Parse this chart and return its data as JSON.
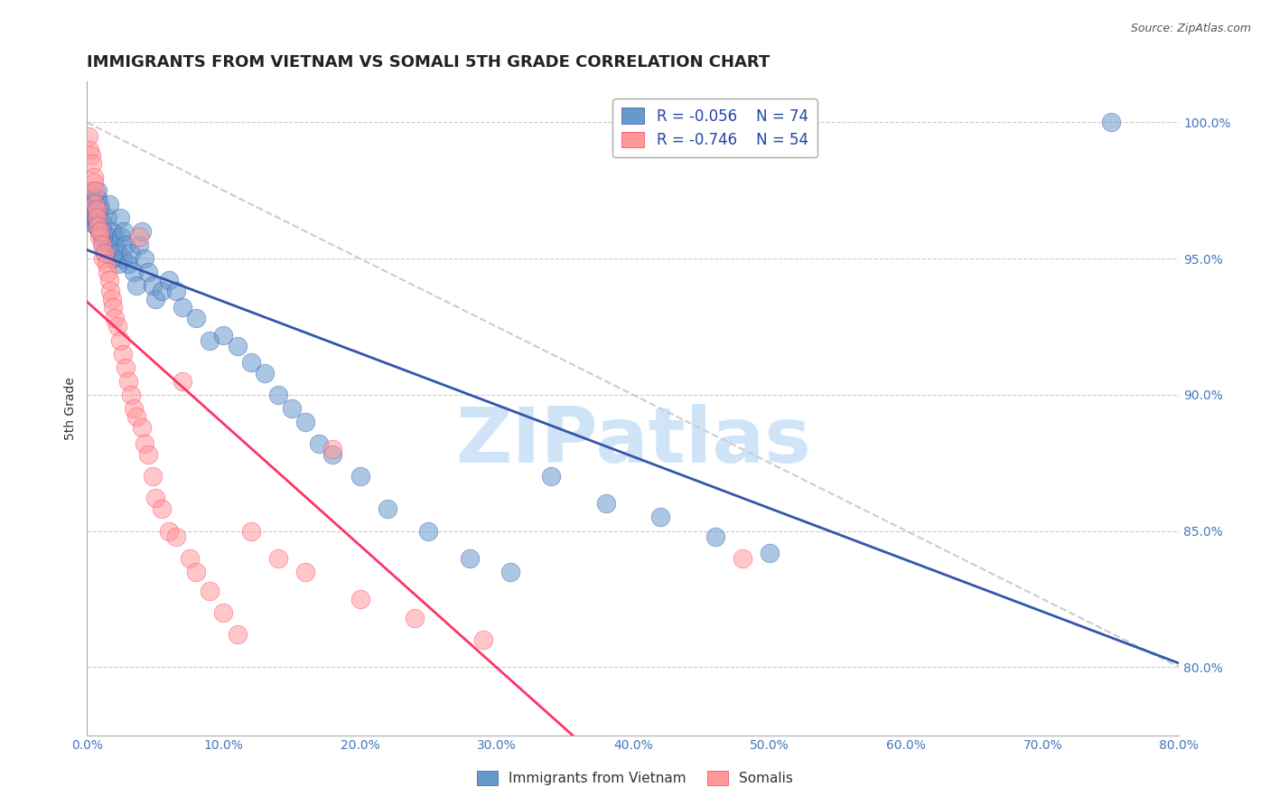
{
  "title": "IMMIGRANTS FROM VIETNAM VS SOMALI 5TH GRADE CORRELATION CHART",
  "source": "Source: ZipAtlas.com",
  "ylabel": "5th Grade",
  "ytick_labels": [
    "100.0%",
    "95.0%",
    "90.0%",
    "85.0%",
    "80.0%"
  ],
  "ytick_values": [
    1.0,
    0.95,
    0.9,
    0.85,
    0.8
  ],
  "xlim": [
    0.0,
    0.8
  ],
  "ylim": [
    0.775,
    1.015
  ],
  "legend_r1": "R = -0.056",
  "legend_n1": "N = 74",
  "legend_r2": "R = -0.746",
  "legend_n2": "N = 54",
  "color_blue": "#6699CC",
  "color_pink": "#FF9999",
  "trendline_blue_color": "#3355AA",
  "trendline_pink_color": "#FF3366",
  "trendline_diagonal_color": "#CCCCCC",
  "watermark_color": "#D0E4F7",
  "title_fontsize": 13,
  "axis_label_fontsize": 10,
  "tick_fontsize": 10,
  "vietnam_x": [
    0.001,
    0.002,
    0.003,
    0.003,
    0.004,
    0.004,
    0.005,
    0.005,
    0.006,
    0.006,
    0.007,
    0.007,
    0.008,
    0.008,
    0.009,
    0.009,
    0.01,
    0.01,
    0.011,
    0.011,
    0.012,
    0.012,
    0.013,
    0.014,
    0.015,
    0.016,
    0.017,
    0.018,
    0.019,
    0.02,
    0.021,
    0.022,
    0.023,
    0.024,
    0.025,
    0.026,
    0.027,
    0.028,
    0.03,
    0.032,
    0.034,
    0.036,
    0.038,
    0.04,
    0.042,
    0.045,
    0.048,
    0.05,
    0.055,
    0.06,
    0.065,
    0.07,
    0.08,
    0.09,
    0.1,
    0.11,
    0.12,
    0.13,
    0.14,
    0.15,
    0.16,
    0.17,
    0.18,
    0.2,
    0.22,
    0.25,
    0.28,
    0.31,
    0.34,
    0.38,
    0.42,
    0.46,
    0.5,
    0.75
  ],
  "vietnam_y": [
    0.97,
    0.968,
    0.972,
    0.975,
    0.965,
    0.963,
    0.971,
    0.969,
    0.967,
    0.966,
    0.964,
    0.962,
    0.975,
    0.972,
    0.97,
    0.96,
    0.968,
    0.965,
    0.963,
    0.958,
    0.96,
    0.955,
    0.952,
    0.958,
    0.965,
    0.97,
    0.955,
    0.96,
    0.95,
    0.958,
    0.955,
    0.952,
    0.948,
    0.965,
    0.958,
    0.95,
    0.96,
    0.955,
    0.948,
    0.952,
    0.945,
    0.94,
    0.955,
    0.96,
    0.95,
    0.945,
    0.94,
    0.935,
    0.938,
    0.942,
    0.938,
    0.932,
    0.928,
    0.92,
    0.922,
    0.918,
    0.912,
    0.908,
    0.9,
    0.895,
    0.89,
    0.882,
    0.878,
    0.87,
    0.858,
    0.85,
    0.84,
    0.835,
    0.87,
    0.86,
    0.855,
    0.848,
    0.842,
    1.0
  ],
  "somali_x": [
    0.001,
    0.002,
    0.003,
    0.004,
    0.005,
    0.005,
    0.006,
    0.006,
    0.007,
    0.007,
    0.008,
    0.009,
    0.01,
    0.011,
    0.012,
    0.013,
    0.014,
    0.015,
    0.016,
    0.017,
    0.018,
    0.019,
    0.02,
    0.022,
    0.024,
    0.026,
    0.028,
    0.03,
    0.032,
    0.034,
    0.036,
    0.038,
    0.04,
    0.042,
    0.045,
    0.048,
    0.05,
    0.055,
    0.06,
    0.065,
    0.07,
    0.075,
    0.08,
    0.09,
    0.1,
    0.11,
    0.12,
    0.14,
    0.16,
    0.18,
    0.2,
    0.24,
    0.29,
    0.48
  ],
  "somali_y": [
    0.995,
    0.99,
    0.988,
    0.985,
    0.98,
    0.978,
    0.975,
    0.97,
    0.968,
    0.965,
    0.962,
    0.958,
    0.96,
    0.955,
    0.95,
    0.952,
    0.948,
    0.945,
    0.942,
    0.938,
    0.935,
    0.932,
    0.928,
    0.925,
    0.92,
    0.915,
    0.91,
    0.905,
    0.9,
    0.895,
    0.892,
    0.958,
    0.888,
    0.882,
    0.878,
    0.87,
    0.862,
    0.858,
    0.85,
    0.848,
    0.905,
    0.84,
    0.835,
    0.828,
    0.82,
    0.812,
    0.85,
    0.84,
    0.835,
    0.88,
    0.825,
    0.818,
    0.81,
    0.84
  ]
}
